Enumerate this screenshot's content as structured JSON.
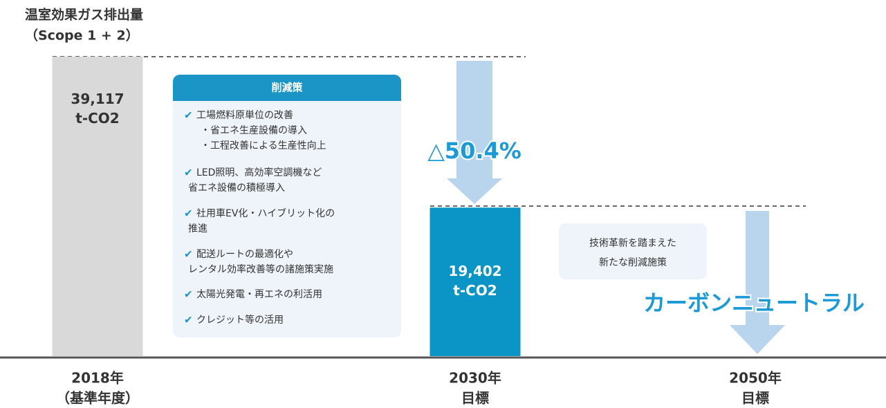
{
  "chart_data": {
    "type": "bar",
    "title": "温室効果ガス排出量",
    "subtitle": "（Scope 1 + 2）",
    "categories": [
      "2018年",
      "2030年",
      "2050年"
    ],
    "category_notes": [
      "（基準年度）",
      "目標",
      "目標"
    ],
    "values": [
      39117,
      19402,
      null
    ],
    "value_labels": [
      "39,117",
      "19,402",
      null
    ],
    "unit": "t-CO2",
    "colors": [
      "#d9d9d9",
      "#0a95c6",
      null
    ],
    "reduction_label": "△50.4%",
    "measures": {
      "title": "削減策",
      "items": [
        {
          "lines": [
            "工場燃料原単位の改善",
            "・省エネ生産設備の導入",
            "・工程改善による生産性向上"
          ]
        },
        {
          "lines": [
            "LED照明、高効率空調機など",
            "省エネ設備の積極導入"
          ]
        },
        {
          "lines": [
            "社用車EV化・ハイブリット化の",
            "推進"
          ]
        },
        {
          "lines": [
            "配送ルートの最適化や",
            "レンタル効率改善等の諸施策実施"
          ]
        },
        {
          "lines": [
            "太陽光発電・再エネの利活用"
          ]
        },
        {
          "lines": [
            "クレジット等の活用"
          ]
        }
      ]
    },
    "future_note": [
      "技術革新を踏まえた",
      "新たな削減施策"
    ],
    "goal_label": "カーボンニュートラル"
  }
}
